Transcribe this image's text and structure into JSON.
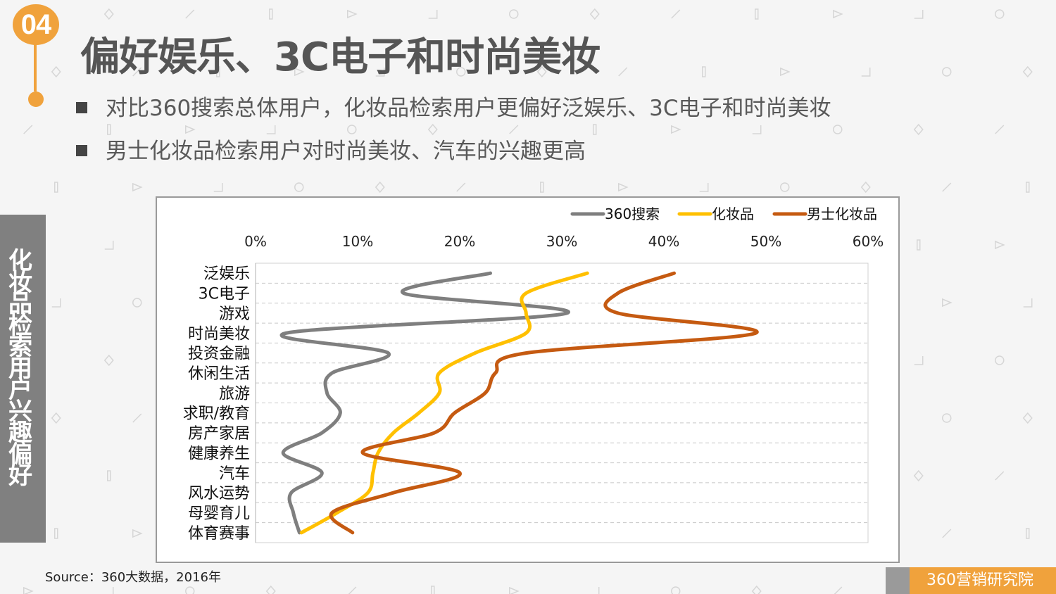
{
  "badge": {
    "number": "04"
  },
  "title": "偏好娱乐、3C电子和时尚美妆",
  "bullets": [
    "对比360搜索总体用户，化妆品检索用户更偏好泛娱乐、3C电子和时尚美妆",
    "男士化妆品检索用户对时尚美妆、汽车的兴趣更高"
  ],
  "side_label": "化妆品检索用户兴趣偏好",
  "source": "Source：360大数据，2016年",
  "footer_brand": "360营销研究院",
  "colors": {
    "accent": "#f0a23c",
    "series_360": "#7f7f7f",
    "series_cosmetics": "#ffc000",
    "series_men": "#c55a11"
  },
  "chart_data": {
    "type": "line",
    "orientation": "horizontal",
    "x_tick_labels": [
      "0%",
      "10%",
      "20%",
      "30%",
      "40%",
      "50%",
      "60%"
    ],
    "xlim": [
      0,
      60
    ],
    "x_axis_position": "top",
    "grid": true,
    "legend_position": "top-right",
    "categories": [
      "泛娱乐",
      "3C电子",
      "游戏",
      "时尚美妆",
      "投资金融",
      "休闲生活",
      "旅游",
      "求职/教育",
      "房产家居",
      "健康养生",
      "汽车",
      "风水运势",
      "母婴育儿",
      "体育赛事"
    ],
    "series": [
      {
        "name": "360搜索",
        "values": [
          23,
          14.5,
          30.5,
          3,
          13,
          7.5,
          7,
          8.3,
          6.5,
          2.7,
          6.5,
          3.5,
          3.7,
          4.3
        ]
      },
      {
        "name": "化妆品",
        "values": [
          32.5,
          26.5,
          26.5,
          26.5,
          21.5,
          18,
          18,
          16,
          13.5,
          12,
          11.5,
          11,
          8,
          4.5
        ]
      },
      {
        "name": "男士化妆品",
        "values": [
          41,
          35.5,
          35.5,
          49,
          26.5,
          23.5,
          22.5,
          19.5,
          17.5,
          10.5,
          20,
          13.5,
          7.5,
          9.5
        ]
      }
    ]
  }
}
